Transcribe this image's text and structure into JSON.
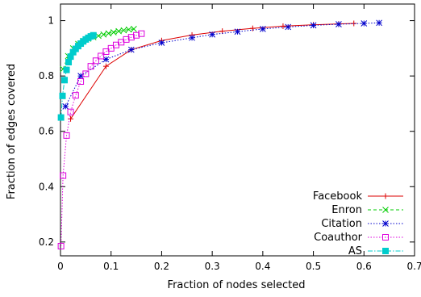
{
  "chart_data": {
    "type": "line",
    "title": "",
    "xlabel": "Fraction of nodes selected",
    "ylabel": "Fraction of edges covered",
    "xlim": [
      0,
      0.7
    ],
    "ylim": [
      0.15,
      1.06
    ],
    "xticks": [
      0,
      0.1,
      0.2,
      0.3,
      0.4,
      0.5,
      0.6,
      0.7
    ],
    "xtick_labels": [
      "0",
      "0.1",
      "0.2",
      "0.3",
      "0.4",
      "0.5",
      "0.6",
      "0.7"
    ],
    "yticks": [
      0.2,
      0.4,
      0.6,
      0.8,
      1
    ],
    "ytick_labels": [
      "0.2",
      "0.4",
      "0.6",
      "0.8",
      "1"
    ],
    "grid": false,
    "legend_position": "bottom-right",
    "series": [
      {
        "name": "Facebook",
        "color": "#dd0000",
        "marker": "plus",
        "dash": "solid",
        "x": [
          0.02,
          0.09,
          0.14,
          0.2,
          0.26,
          0.32,
          0.38,
          0.44,
          0.5,
          0.55,
          0.58
        ],
        "y": [
          0.645,
          0.835,
          0.895,
          0.928,
          0.948,
          0.962,
          0.972,
          0.98,
          0.985,
          0.988,
          0.99
        ]
      },
      {
        "name": "Enron",
        "color": "#00cc00",
        "marker": "x",
        "dash": "dashed",
        "x": [
          0.005,
          0.015,
          0.025,
          0.035,
          0.045,
          0.055,
          0.065,
          0.075,
          0.085,
          0.095,
          0.105,
          0.115,
          0.125,
          0.135,
          0.145
        ],
        "y": [
          0.825,
          0.872,
          0.9,
          0.916,
          0.927,
          0.935,
          0.94,
          0.945,
          0.95,
          0.954,
          0.958,
          0.962,
          0.965,
          0.968,
          0.97
        ]
      },
      {
        "name": "Citation",
        "color": "#0000cc",
        "marker": "star",
        "dash": "dotted",
        "x": [
          0.01,
          0.04,
          0.09,
          0.14,
          0.2,
          0.26,
          0.3,
          0.35,
          0.4,
          0.45,
          0.5,
          0.55,
          0.6,
          0.63
        ],
        "y": [
          0.69,
          0.8,
          0.86,
          0.895,
          0.92,
          0.938,
          0.95,
          0.96,
          0.97,
          0.977,
          0.983,
          0.987,
          0.99,
          0.992
        ]
      },
      {
        "name": "Coauthor",
        "color": "#dd00dd",
        "marker": "square",
        "dash": "dotted",
        "x": [
          0.001,
          0.005,
          0.012,
          0.02,
          0.03,
          0.04,
          0.05,
          0.06,
          0.07,
          0.08,
          0.09,
          0.1,
          0.11,
          0.12,
          0.13,
          0.14,
          0.15,
          0.16
        ],
        "y": [
          0.185,
          0.44,
          0.585,
          0.67,
          0.73,
          0.78,
          0.808,
          0.835,
          0.855,
          0.872,
          0.888,
          0.9,
          0.912,
          0.922,
          0.932,
          0.94,
          0.947,
          0.953
        ]
      },
      {
        "name": "AS",
        "color": "#00cccc",
        "marker": "filled-square",
        "dash": "dashdot",
        "x": [
          0.001,
          0.004,
          0.008,
          0.012,
          0.016,
          0.02,
          0.025,
          0.03,
          0.035,
          0.04,
          0.045,
          0.05,
          0.055,
          0.06,
          0.065
        ],
        "y": [
          0.65,
          0.728,
          0.785,
          0.822,
          0.85,
          0.87,
          0.886,
          0.898,
          0.908,
          0.917,
          0.925,
          0.932,
          0.938,
          0.943,
          0.947
        ]
      }
    ]
  }
}
